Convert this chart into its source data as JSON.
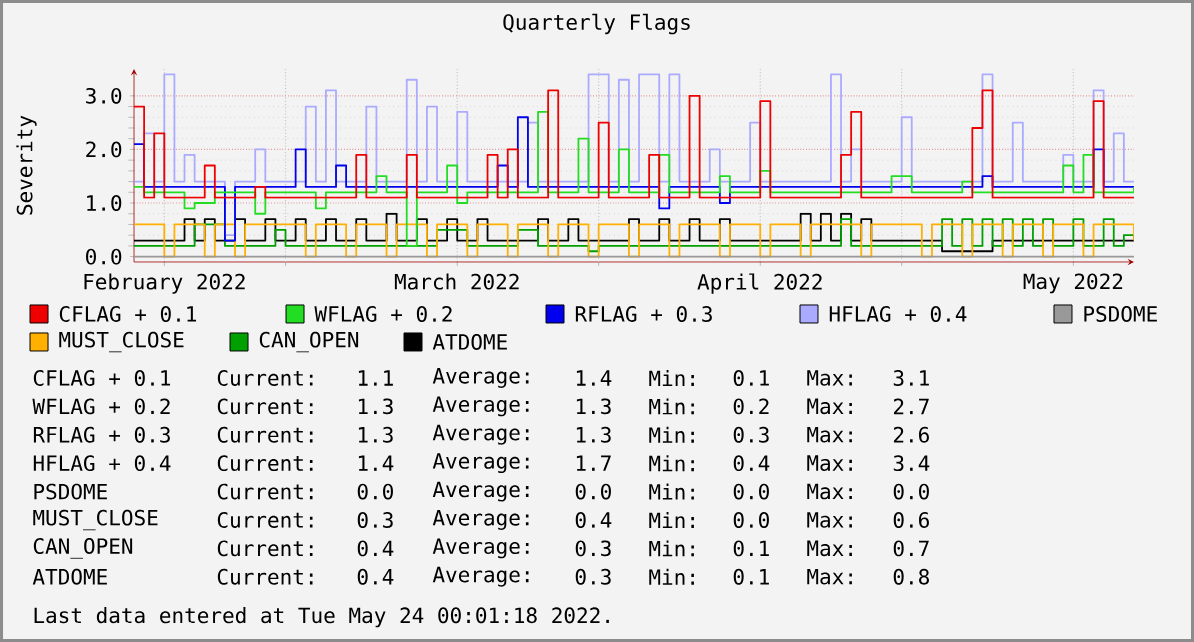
{
  "chart_data": {
    "type": "step",
    "title": "Quarterly Flags",
    "ylabel": "Severity",
    "legend": "bottom",
    "grid": true,
    "xlim": [
      "2022-02-14",
      "2022-05-24"
    ],
    "ylim": [
      -0.1,
      3.5
    ],
    "xticks": [
      {
        "value": "2022-02-17",
        "label": "February 2022"
      },
      {
        "value": "2022-03-01",
        "label": null
      },
      {
        "value": "2022-03-18",
        "label": "March 2022"
      },
      {
        "value": "2022-04-01",
        "label": null
      },
      {
        "value": "2022-04-17",
        "label": "April 2022"
      },
      {
        "value": "2022-05-01",
        "label": null
      },
      {
        "value": "2022-05-18",
        "label": "May 2022"
      }
    ],
    "yticks": [
      {
        "value": 0,
        "label": "0.0"
      },
      {
        "value": 1,
        "label": "1.0"
      },
      {
        "value": 2,
        "label": "2.0"
      },
      {
        "value": 3,
        "label": "3.0"
      }
    ],
    "series": [
      {
        "name": "CFLAG + 0.1",
        "color": "#ee0000",
        "x": [
          "2022-02-14",
          "2022-02-15",
          "2022-02-16",
          "2022-02-17",
          "2022-02-21",
          "2022-02-22",
          "2022-02-26",
          "2022-02-27",
          "2022-03-08",
          "2022-03-09",
          "2022-03-13",
          "2022-03-14",
          "2022-03-21",
          "2022-03-22",
          "2022-03-23",
          "2022-03-24",
          "2022-03-27",
          "2022-03-28",
          "2022-04-01",
          "2022-04-02",
          "2022-04-06",
          "2022-04-07",
          "2022-04-10",
          "2022-04-11",
          "2022-04-17",
          "2022-04-18",
          "2022-04-25",
          "2022-04-26",
          "2022-04-27",
          "2022-05-08",
          "2022-05-09",
          "2022-05-10",
          "2022-05-20",
          "2022-05-21",
          "2022-05-24"
        ],
        "values": [
          2.8,
          1.1,
          2.3,
          1.1,
          1.7,
          1.1,
          1.3,
          1.1,
          1.9,
          1.1,
          1.9,
          1.1,
          1.9,
          1.1,
          2.0,
          1.1,
          3.1,
          1.1,
          2.5,
          1.1,
          1.9,
          1.1,
          3.0,
          1.1,
          2.9,
          1.1,
          1.9,
          2.7,
          1.1,
          2.4,
          3.1,
          1.1,
          2.9,
          1.1,
          1.1
        ]
      },
      {
        "name": "WFLAG + 0.2",
        "color": "#22dd22",
        "x": [
          "2022-02-14",
          "2022-02-15",
          "2022-02-19",
          "2022-02-20",
          "2022-02-22",
          "2022-02-26",
          "2022-02-27",
          "2022-03-04",
          "2022-03-05",
          "2022-03-10",
          "2022-03-11",
          "2022-03-13",
          "2022-03-14",
          "2022-03-17",
          "2022-03-18",
          "2022-03-19",
          "2022-03-26",
          "2022-03-27",
          "2022-03-30",
          "2022-03-31",
          "2022-04-03",
          "2022-04-04",
          "2022-04-07",
          "2022-04-08",
          "2022-04-13",
          "2022-04-14",
          "2022-04-17",
          "2022-04-18",
          "2022-04-30",
          "2022-05-02",
          "2022-05-07",
          "2022-05-08",
          "2022-05-17",
          "2022-05-18",
          "2022-05-19",
          "2022-05-20",
          "2022-05-24"
        ],
        "values": [
          1.3,
          1.2,
          0.9,
          1.0,
          1.2,
          0.8,
          1.2,
          0.9,
          1.2,
          1.5,
          1.2,
          0.2,
          1.2,
          1.7,
          1.0,
          1.2,
          2.7,
          1.2,
          2.2,
          1.2,
          2.0,
          1.2,
          1.9,
          1.2,
          1.5,
          1.2,
          1.6,
          1.2,
          1.5,
          1.2,
          1.4,
          1.2,
          1.7,
          1.2,
          1.9,
          1.2,
          1.3
        ]
      },
      {
        "name": "RFLAG + 0.3",
        "color": "#0000ee",
        "x": [
          "2022-02-14",
          "2022-02-15",
          "2022-02-23",
          "2022-02-24",
          "2022-03-02",
          "2022-03-03",
          "2022-03-06",
          "2022-03-07",
          "2022-03-22",
          "2022-03-23",
          "2022-03-24",
          "2022-03-25",
          "2022-04-07",
          "2022-04-08",
          "2022-04-13",
          "2022-04-14",
          "2022-05-09",
          "2022-05-10",
          "2022-05-20",
          "2022-05-21",
          "2022-05-24"
        ],
        "values": [
          2.1,
          1.3,
          0.3,
          1.3,
          2.0,
          1.3,
          1.7,
          1.3,
          1.7,
          1.3,
          2.6,
          1.3,
          0.9,
          1.3,
          1.0,
          1.3,
          1.5,
          1.3,
          2.0,
          1.3,
          1.3
        ]
      },
      {
        "name": "HFLAG + 0.4",
        "color": "#aaaaff",
        "x": [
          "2022-02-14",
          "2022-02-15",
          "2022-02-16",
          "2022-02-17",
          "2022-02-18",
          "2022-02-19",
          "2022-02-20",
          "2022-02-23",
          "2022-02-24",
          "2022-02-26",
          "2022-02-27",
          "2022-03-03",
          "2022-03-04",
          "2022-03-05",
          "2022-03-06",
          "2022-03-09",
          "2022-03-10",
          "2022-03-13",
          "2022-03-14",
          "2022-03-15",
          "2022-03-16",
          "2022-03-18",
          "2022-03-19",
          "2022-03-25",
          "2022-03-26",
          "2022-03-31",
          "2022-04-02",
          "2022-04-03",
          "2022-04-04",
          "2022-04-05",
          "2022-04-07",
          "2022-04-08",
          "2022-04-09",
          "2022-04-12",
          "2022-04-13",
          "2022-04-16",
          "2022-04-17",
          "2022-04-24",
          "2022-04-25",
          "2022-04-26",
          "2022-04-27",
          "2022-05-01",
          "2022-05-02",
          "2022-05-09",
          "2022-05-10",
          "2022-05-12",
          "2022-05-13",
          "2022-05-17",
          "2022-05-18",
          "2022-05-20",
          "2022-05-21",
          "2022-05-22",
          "2022-05-23",
          "2022-05-24"
        ],
        "values": [
          1.4,
          2.3,
          1.4,
          3.4,
          1.4,
          1.9,
          1.4,
          0.4,
          1.4,
          2.0,
          1.4,
          2.8,
          1.4,
          3.1,
          1.4,
          2.8,
          1.4,
          3.3,
          1.4,
          2.8,
          1.4,
          2.7,
          1.4,
          2.5,
          1.4,
          3.4,
          1.4,
          3.3,
          1.4,
          3.4,
          1.4,
          3.4,
          1.4,
          2.0,
          1.4,
          2.5,
          1.4,
          3.4,
          1.4,
          2.0,
          1.4,
          2.6,
          1.4,
          3.4,
          1.4,
          2.5,
          1.4,
          1.9,
          1.4,
          3.1,
          1.4,
          2.3,
          1.4,
          1.4
        ]
      },
      {
        "name": "PSDOME",
        "color": "#999999",
        "x": [
          "2022-02-14",
          "2022-05-24"
        ],
        "values": [
          0.0,
          0.0
        ]
      },
      {
        "name": "MUST_CLOSE",
        "color": "#ffb000",
        "x": [
          "2022-02-14",
          "2022-02-17",
          "2022-02-18",
          "2022-02-21",
          "2022-02-22",
          "2022-02-24",
          "2022-02-25",
          "2022-03-03",
          "2022-03-04",
          "2022-03-07",
          "2022-03-08",
          "2022-03-11",
          "2022-03-12",
          "2022-03-15",
          "2022-03-16",
          "2022-03-19",
          "2022-03-20",
          "2022-03-23",
          "2022-03-24",
          "2022-03-27",
          "2022-03-28",
          "2022-03-31",
          "2022-04-01",
          "2022-04-04",
          "2022-04-05",
          "2022-04-08",
          "2022-04-09",
          "2022-04-13",
          "2022-04-14",
          "2022-04-17",
          "2022-04-18",
          "2022-04-21",
          "2022-04-22",
          "2022-04-27",
          "2022-04-28",
          "2022-05-03",
          "2022-05-04",
          "2022-05-07",
          "2022-05-08",
          "2022-05-11",
          "2022-05-12",
          "2022-05-15",
          "2022-05-16",
          "2022-05-19",
          "2022-05-20",
          "2022-05-24"
        ],
        "values": [
          0.6,
          0.0,
          0.6,
          0.0,
          0.6,
          0.0,
          0.6,
          0.0,
          0.6,
          0.0,
          0.6,
          0.0,
          0.6,
          0.0,
          0.6,
          0.0,
          0.6,
          0.0,
          0.6,
          0.0,
          0.6,
          0.0,
          0.6,
          0.0,
          0.6,
          0.0,
          0.6,
          0.0,
          0.6,
          0.0,
          0.6,
          0.0,
          0.6,
          0.0,
          0.6,
          0.0,
          0.6,
          0.0,
          0.6,
          0.0,
          0.6,
          0.0,
          0.6,
          0.0,
          0.6,
          0.3
        ]
      },
      {
        "name": "CAN_OPEN",
        "color": "#00a000",
        "x": [
          "2022-02-14",
          "2022-02-20",
          "2022-02-23",
          "2022-02-28",
          "2022-03-01",
          "2022-03-16",
          "2022-03-19",
          "2022-03-24",
          "2022-03-26",
          "2022-03-31",
          "2022-04-01",
          "2022-04-25",
          "2022-04-26",
          "2022-05-05",
          "2022-05-06",
          "2022-05-07",
          "2022-05-08",
          "2022-05-09",
          "2022-05-10",
          "2022-05-11",
          "2022-05-12",
          "2022-05-13",
          "2022-05-14",
          "2022-05-15",
          "2022-05-16",
          "2022-05-18",
          "2022-05-19",
          "2022-05-21",
          "2022-05-22",
          "2022-05-23",
          "2022-05-24"
        ],
        "values": [
          0.2,
          0.6,
          0.2,
          0.5,
          0.2,
          0.5,
          0.2,
          0.5,
          0.2,
          0.1,
          0.2,
          0.7,
          0.2,
          0.7,
          0.2,
          0.7,
          0.2,
          0.7,
          0.2,
          0.7,
          0.2,
          0.7,
          0.2,
          0.7,
          0.2,
          0.7,
          0.2,
          0.7,
          0.2,
          0.4,
          0.4
        ]
      },
      {
        "name": "ATDOME",
        "color": "#000000",
        "x": [
          "2022-02-14",
          "2022-02-19",
          "2022-02-20",
          "2022-02-21",
          "2022-02-22",
          "2022-02-24",
          "2022-02-25",
          "2022-02-27",
          "2022-02-28",
          "2022-03-02",
          "2022-03-03",
          "2022-03-05",
          "2022-03-06",
          "2022-03-08",
          "2022-03-09",
          "2022-03-11",
          "2022-03-12",
          "2022-03-14",
          "2022-03-15",
          "2022-03-17",
          "2022-03-18",
          "2022-03-20",
          "2022-03-21",
          "2022-03-26",
          "2022-03-27",
          "2022-03-29",
          "2022-03-30",
          "2022-04-04",
          "2022-04-05",
          "2022-04-07",
          "2022-04-08",
          "2022-04-10",
          "2022-04-11",
          "2022-04-13",
          "2022-04-14",
          "2022-04-21",
          "2022-04-22",
          "2022-04-23",
          "2022-04-24",
          "2022-04-25",
          "2022-04-26",
          "2022-04-27",
          "2022-04-28",
          "2022-05-05",
          "2022-05-10",
          "2022-05-24"
        ],
        "values": [
          0.3,
          0.7,
          0.3,
          0.7,
          0.3,
          0.7,
          0.3,
          0.7,
          0.3,
          0.7,
          0.3,
          0.7,
          0.3,
          0.7,
          0.3,
          0.8,
          0.3,
          0.7,
          0.3,
          0.7,
          0.3,
          0.7,
          0.3,
          0.7,
          0.3,
          0.7,
          0.3,
          0.7,
          0.3,
          0.7,
          0.3,
          0.7,
          0.3,
          0.7,
          0.3,
          0.8,
          0.3,
          0.8,
          0.3,
          0.8,
          0.3,
          0.7,
          0.3,
          0.1,
          0.3,
          0.4
        ]
      }
    ],
    "annotations": [
      "CFLAG + 0.1",
      "Current:",
      "1.1",
      "Average:",
      "1.4",
      "Min:",
      "0.1",
      "Max:",
      "3.1",
      "WFLAG + 0.2",
      "Current:",
      "1.3",
      "Average:",
      "1.3",
      "Min:",
      "0.2",
      "Max:",
      "2.7",
      "RFLAG + 0.3",
      "Current:",
      "1.3",
      "Average:",
      "1.3",
      "Min:",
      "0.3",
      "Max:",
      "2.6",
      "HFLAG + 0.4",
      "Current:",
      "1.4",
      "Average:",
      "1.7",
      "Min:",
      "0.4",
      "Max:",
      "3.4",
      "PSDOME",
      "Current:",
      "0.0",
      "Average:",
      "0.0",
      "Min:",
      "0.0",
      "Max:",
      "0.0",
      "MUST_CLOSE",
      "Current:",
      "0.3",
      "Average:",
      "0.4",
      "Min:",
      "0.0",
      "Max:",
      "0.6",
      "CAN_OPEN",
      "Current:",
      "0.4",
      "Average:",
      "0.3",
      "Min:",
      "0.1",
      "Max:",
      "0.7",
      "ATDOME",
      "Current:",
      "0.4",
      "Average:",
      "0.3",
      "Min:",
      "0.1",
      "Max:",
      "0.8",
      "Last data entered at Tue May 24 00:01:18 2022."
    ]
  }
}
